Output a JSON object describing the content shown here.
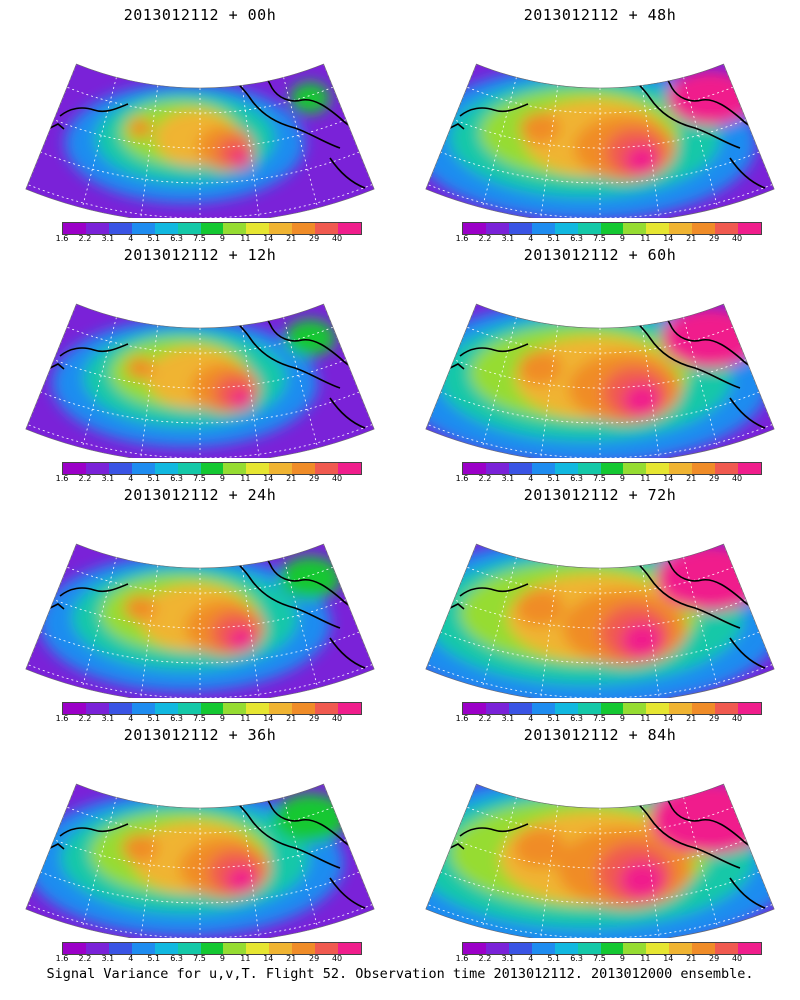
{
  "panels": [
    {
      "title": "2013012112 + 00h",
      "lead": 0
    },
    {
      "title": "2013012112 + 48h",
      "lead": 48
    },
    {
      "title": "2013012112 + 12h",
      "lead": 12
    },
    {
      "title": "2013012112 + 60h",
      "lead": 60
    },
    {
      "title": "2013012112 + 24h",
      "lead": 24
    },
    {
      "title": "2013012112 + 72h",
      "lead": 72
    },
    {
      "title": "2013012112 + 36h",
      "lead": 36
    },
    {
      "title": "2013012112 + 84h",
      "lead": 84
    }
  ],
  "colorbar": {
    "labels": [
      "1.6",
      "2.2",
      "3.1",
      "4",
      "5.1",
      "6.3",
      "7.5",
      "9",
      "11",
      "14",
      "21",
      "29",
      "40"
    ],
    "colors": [
      "#9b00c8",
      "#7a22d8",
      "#3a54e4",
      "#1e8cf0",
      "#11b8e0",
      "#14c8a8",
      "#14c832",
      "#96dc32",
      "#e6e632",
      "#f0b432",
      "#f08c28",
      "#f05a50",
      "#f01e8c"
    ]
  },
  "footer": "Signal Variance for u,v,T. Flight 52. Observation time 2013012112. 2013012000 ensemble."
}
